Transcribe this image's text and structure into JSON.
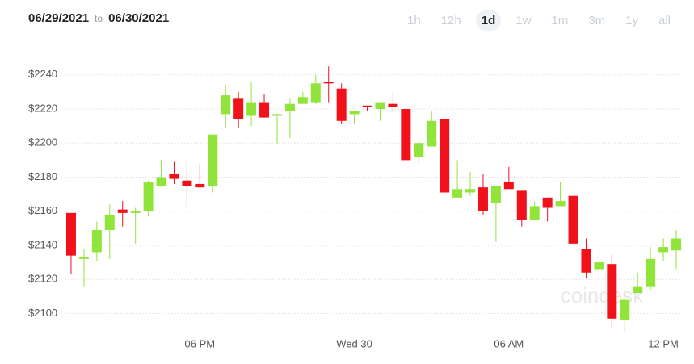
{
  "date_range": {
    "from": "06/29/2021",
    "separator": "to",
    "to": "06/30/2021"
  },
  "ranges": [
    "1h",
    "12h",
    "1d",
    "1w",
    "1m",
    "3m",
    "1y",
    "all"
  ],
  "selected_range": "1d",
  "watermark": "coindesk",
  "chart_data": {
    "type": "candlestick",
    "categories": [
      null,
      null,
      null,
      null,
      null,
      null,
      null,
      null,
      null,
      null,
      "06 PM",
      null,
      null,
      null,
      null,
      null,
      null,
      null,
      null,
      null,
      null,
      null,
      "Wed 30",
      null,
      null,
      null,
      null,
      null,
      null,
      null,
      null,
      null,
      null,
      null,
      "06 AM",
      null,
      null,
      null,
      null,
      null,
      null,
      null,
      null,
      null,
      null,
      null,
      "12 PM",
      null
    ],
    "open": [
      2159,
      2132,
      2136,
      2149,
      2161,
      2159,
      2160,
      2175,
      2182,
      2178,
      2176,
      2175,
      2217,
      2226,
      2216,
      2224,
      2216,
      2219,
      2223,
      2224,
      2236,
      2232,
      2217,
      2222,
      2220,
      2223,
      2220,
      2192,
      2198,
      2214,
      2168,
      2171,
      2174,
      2165,
      2177,
      2172,
      2155,
      2168,
      2163,
      2169,
      2138,
      2126,
      2129,
      2096,
      2112,
      2116,
      2136,
      2137
    ],
    "high": [
      2159,
      2138,
      2154,
      2164,
      2166,
      2162,
      2178,
      2190,
      2189,
      2189,
      2188,
      2205,
      2234,
      2230,
      2236,
      2229,
      2217,
      2226,
      2230,
      2240,
      2245,
      2235,
      2219,
      2222,
      2224,
      2230,
      2220,
      2200,
      2219,
      2214,
      2190,
      2183,
      2182,
      2175,
      2186,
      2172,
      2166,
      2168,
      2177,
      2169,
      2144,
      2138,
      2135,
      2114,
      2124,
      2139,
      2144,
      2149
    ],
    "low": [
      2123,
      2116,
      2131,
      2132,
      2151,
      2141,
      2157,
      2175,
      2176,
      2163,
      2174,
      2171,
      2209,
      2209,
      2210,
      2215,
      2199,
      2203,
      2223,
      2223,
      2224,
      2211,
      2211,
      2219,
      2213,
      2218,
      2190,
      2188,
      2198,
      2171,
      2168,
      2169,
      2158,
      2142,
      2173,
      2151,
      2155,
      2154,
      2163,
      2141,
      2121,
      2121,
      2092,
      2089,
      2112,
      2114,
      2131,
      2126
    ],
    "close": [
      2134,
      2133,
      2149,
      2158,
      2159,
      2160,
      2177,
      2180,
      2179,
      2175,
      2174,
      2205,
      2228,
      2214,
      2224,
      2215,
      2217,
      2223,
      2227,
      2235,
      2235,
      2213,
      2219,
      2221,
      2224,
      2221,
      2190,
      2200,
      2213,
      2171,
      2173,
      2173,
      2160,
      2175,
      2173,
      2155,
      2163,
      2162,
      2166,
      2141,
      2124,
      2130,
      2097,
      2108,
      2116,
      2132,
      2139,
      2144
    ],
    "up_color": "#90e43a",
    "down_color": "#f0111b",
    "ylim": [
      2086,
      2256
    ],
    "yticks": [
      {
        "value": 2100,
        "label": "$2100"
      },
      {
        "value": 2120,
        "label": "$2120"
      },
      {
        "value": 2140,
        "label": "$2140"
      },
      {
        "value": 2160,
        "label": "$2160"
      },
      {
        "value": 2180,
        "label": "$2180"
      },
      {
        "value": 2200,
        "label": "$2200"
      },
      {
        "value": 2220,
        "label": "$2220"
      },
      {
        "value": 2240,
        "label": "$2240"
      }
    ],
    "grid": true
  }
}
